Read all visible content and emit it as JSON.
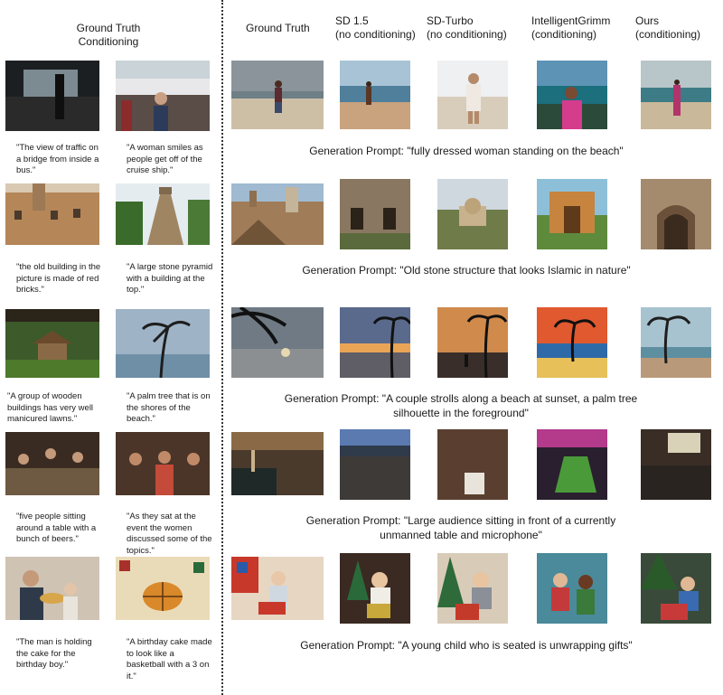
{
  "headers": {
    "left": [
      "Ground Truth",
      "Conditioning"
    ],
    "columns": [
      {
        "l1": "Ground Truth",
        "l2": ""
      },
      {
        "l1": "SD 1.5",
        "l2": "(no conditioning)"
      },
      {
        "l1": "SD-Turbo",
        "l2": "(no conditioning)"
      },
      {
        "l1": "IntelligentGrimm",
        "l2": "(conditioning)"
      },
      {
        "l1": "Ours",
        "l2": "(conditioning)"
      }
    ]
  },
  "rows": [
    {
      "captions": [
        "\"The view of traffic on a bridge from inside a bus.\"",
        "\"A woman smiles as people get off of the cruise ship.\""
      ],
      "prompt": "Generation Prompt: \"fully dressed woman standing on the beach\""
    },
    {
      "captions": [
        "\"the old building in the picture is made of red bricks.\"",
        "\"A large stone pyramid with a building at the top.\""
      ],
      "prompt": "Generation Prompt: \"Old stone structure that looks Islamic in nature\""
    },
    {
      "captions": [
        "\"A group of wooden buildings has very well manicured lawns.\"",
        "\"A palm tree that is on the shores of the beach.\""
      ],
      "prompt": "Generation Prompt: \"A couple strolls along a beach at sunset, a palm tree silhouette in the foreground\""
    },
    {
      "captions": [
        "\"five people sitting around a table with a bunch of beers.\"",
        "\"As they sat at the event the women discussed some of the topics.\""
      ],
      "prompt": "Generation Prompt: \"Large audience sitting in front of a currently unmanned table and microphone\""
    },
    {
      "captions": [
        "\"The man is holding the cake for the birthday boy.\"",
        "\"A birthday cake made to look like a basketball with a 3 on it.\""
      ],
      "prompt": "Generation Prompt: \"A young child who is seated is unwrapping gifts\""
    }
  ]
}
